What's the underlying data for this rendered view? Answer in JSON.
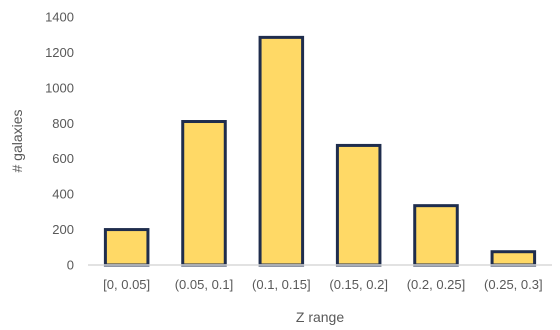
{
  "chart_data": {
    "type": "bar",
    "title": "",
    "xlabel": "Z range",
    "ylabel": "# galaxies",
    "categories": [
      "[0, 0.05]",
      "(0.05, 0.1]",
      "(0.1, 0.15]",
      "(0.15, 0.2]",
      "(0.2, 0.25]",
      "(0.25, 0.3]"
    ],
    "values": [
      200,
      810,
      1285,
      675,
      335,
      75
    ],
    "ylim": [
      0,
      1400
    ],
    "yticks": [
      "0",
      "200",
      "400",
      "600",
      "800",
      "1000",
      "1200",
      "1400"
    ],
    "grid": false,
    "legend": "none",
    "colors": {
      "bar_fill": "#FFD966",
      "bar_stroke": "#1F2D4D",
      "axis": "#D9D9D9",
      "text": "#595959"
    }
  }
}
